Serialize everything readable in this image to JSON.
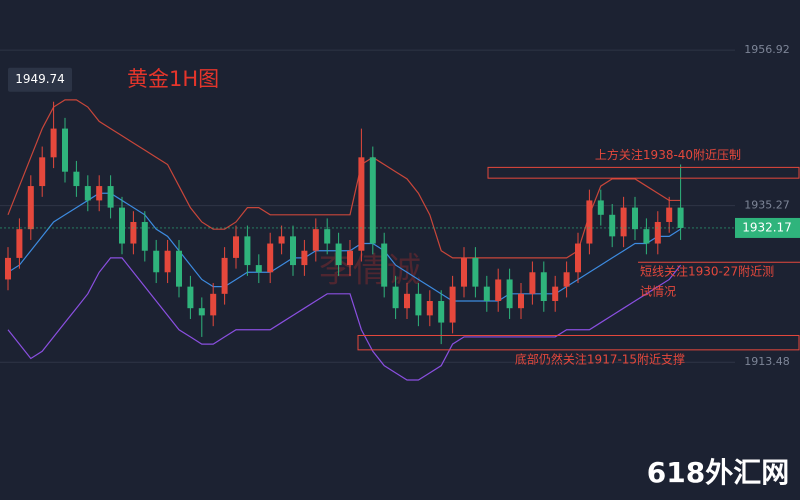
{
  "chart_data": {
    "type": "candlestick",
    "title": "黄金1H图",
    "ylim": [
      1894.3,
      1963.9
    ],
    "yticks": [
      1956.92,
      1935.27,
      1913.48
    ],
    "grid": true,
    "up_color": "#e5483c",
    "down_color": "#2fb47c",
    "open": [
      1925,
      1928,
      1932,
      1938,
      1942,
      1946,
      1940,
      1938,
      1936,
      1938,
      1935,
      1930,
      1933,
      1929,
      1926,
      1929,
      1924,
      1921,
      1920,
      1923,
      1928,
      1931,
      1927,
      1926,
      1930,
      1931,
      1927,
      1929,
      1932,
      1930,
      1927,
      1929,
      1942,
      1930,
      1924,
      1921,
      1923,
      1920,
      1922,
      1919,
      1924,
      1928,
      1924,
      1922,
      1925,
      1921,
      1923,
      1926,
      1922,
      1924,
      1926,
      1930,
      1936,
      1934,
      1931,
      1935,
      1932,
      1930,
      1933,
      1935
    ],
    "high": [
      1929.5,
      1933.5,
      1939.5,
      1943.5,
      1949.74,
      1947.5,
      1941.5,
      1939.5,
      1939.5,
      1939.5,
      1936.5,
      1934.5,
      1934.5,
      1930.5,
      1930.5,
      1930.5,
      1925.5,
      1922.5,
      1924.5,
      1929.5,
      1932.5,
      1932.5,
      1928.5,
      1931.5,
      1932.5,
      1932.5,
      1930.5,
      1933.5,
      1933.5,
      1931.5,
      1930.5,
      1946,
      1943.5,
      1931.5,
      1925.5,
      1924.5,
      1924.5,
      1923.5,
      1923.5,
      1925.5,
      1929.5,
      1929.5,
      1925.5,
      1926.5,
      1926.5,
      1924.5,
      1927.5,
      1927.5,
      1925.5,
      1927.5,
      1931.5,
      1937.5,
      1937.5,
      1935.5,
      1936.5,
      1936.5,
      1933.5,
      1934.5,
      1936.5,
      1941
    ],
    "low": [
      1923.5,
      1926.5,
      1930.5,
      1936.5,
      1940.5,
      1938.5,
      1936.5,
      1934.5,
      1934.5,
      1933.5,
      1928.5,
      1928.5,
      1927.5,
      1924.5,
      1924.5,
      1922.5,
      1919.5,
      1917,
      1918.5,
      1921.5,
      1926.5,
      1925.5,
      1924.5,
      1924.5,
      1928.5,
      1925.5,
      1925.5,
      1927.5,
      1928.5,
      1925.5,
      1925.5,
      1927.5,
      1928.5,
      1922.5,
      1919.5,
      1919.5,
      1918.5,
      1918.5,
      1916,
      1917.5,
      1922.5,
      1922.5,
      1920.5,
      1920.5,
      1919.5,
      1919.5,
      1921.5,
      1920.5,
      1920.5,
      1922.5,
      1924.5,
      1928.5,
      1932.5,
      1929.5,
      1929.5,
      1930.5,
      1928.5,
      1928.5,
      1931.5,
      1930.5
    ],
    "close": [
      1928,
      1932,
      1938,
      1942,
      1946,
      1940,
      1938,
      1936,
      1938,
      1935,
      1930,
      1933,
      1929,
      1926,
      1929,
      1924,
      1921,
      1920,
      1923,
      1928,
      1931,
      1927,
      1926,
      1930,
      1931,
      1927,
      1929,
      1932,
      1930,
      1927,
      1929,
      1942,
      1930,
      1924,
      1921,
      1923,
      1920,
      1922,
      1919,
      1924,
      1928,
      1924,
      1922,
      1925,
      1921,
      1923,
      1926,
      1922,
      1924,
      1926,
      1930,
      1936,
      1934,
      1931,
      1935,
      1932,
      1930,
      1933,
      1935,
      1932.17
    ],
    "bands": {
      "upper": {
        "color": "#c8463a",
        "values": [
          1934,
          1938,
          1942,
          1946,
          1949,
          1950,
          1950,
          1949,
          1947,
          1946,
          1945,
          1944,
          1943,
          1942,
          1941,
          1938,
          1935,
          1933,
          1932,
          1932,
          1933,
          1935,
          1935,
          1934,
          1934,
          1934,
          1934,
          1934,
          1934,
          1934,
          1934,
          1941,
          1942,
          1941,
          1940,
          1939,
          1937,
          1934,
          1929,
          1928,
          1928,
          1928,
          1928,
          1928,
          1928,
          1928,
          1928,
          1928,
          1928,
          1928,
          1929,
          1934,
          1938,
          1939,
          1939,
          1939,
          1938,
          1937,
          1936,
          1936
        ]
      },
      "middle": {
        "color": "#3d8be0",
        "values": [
          1926,
          1927,
          1929,
          1931,
          1933,
          1934,
          1935,
          1936,
          1937,
          1937,
          1936,
          1935,
          1934,
          1932,
          1931,
          1929,
          1927,
          1925,
          1924,
          1924,
          1925,
          1926,
          1926,
          1926,
          1927,
          1928,
          1928,
          1929,
          1929,
          1929,
          1929,
          1930,
          1930,
          1929,
          1927,
          1926,
          1925,
          1924,
          1923,
          1922,
          1922,
          1922,
          1922,
          1922,
          1923,
          1923,
          1923,
          1923,
          1923,
          1924,
          1925,
          1926,
          1927,
          1928,
          1929,
          1930,
          1930,
          1931,
          1931,
          1932
        ]
      },
      "lower": {
        "color": "#8a4fe0",
        "values": [
          1918,
          1916,
          1914,
          1915,
          1917,
          1919,
          1921,
          1923,
          1926,
          1928,
          1928,
          1926,
          1924,
          1922,
          1920,
          1918,
          1917,
          1916,
          1916,
          1917,
          1918,
          1918,
          1918,
          1918,
          1919,
          1920,
          1921,
          1922,
          1923,
          1923,
          1923,
          1918,
          1915,
          1913,
          1912,
          1911,
          1911,
          1912,
          1913,
          1916,
          1917,
          1917,
          1917,
          1917,
          1917,
          1917,
          1917,
          1917,
          1917,
          1918,
          1918,
          1918,
          1919,
          1920,
          1921,
          1922,
          1923,
          1924,
          1925,
          1927
        ]
      }
    },
    "annotations": [
      {
        "text": "上方关注1938-40附近压制",
        "range": [
          1939.1,
          1940.6
        ]
      },
      {
        "text_lines": [
          "短线关注1930-27附近测",
          "试情况"
        ],
        "level": 1927.4
      },
      {
        "text": "底部仍然关注1917-15附近支撑",
        "range": [
          1915.2,
          1917.2
        ]
      }
    ],
    "watermarks": [
      "李倩诚",
      "618外汇网"
    ]
  }
}
